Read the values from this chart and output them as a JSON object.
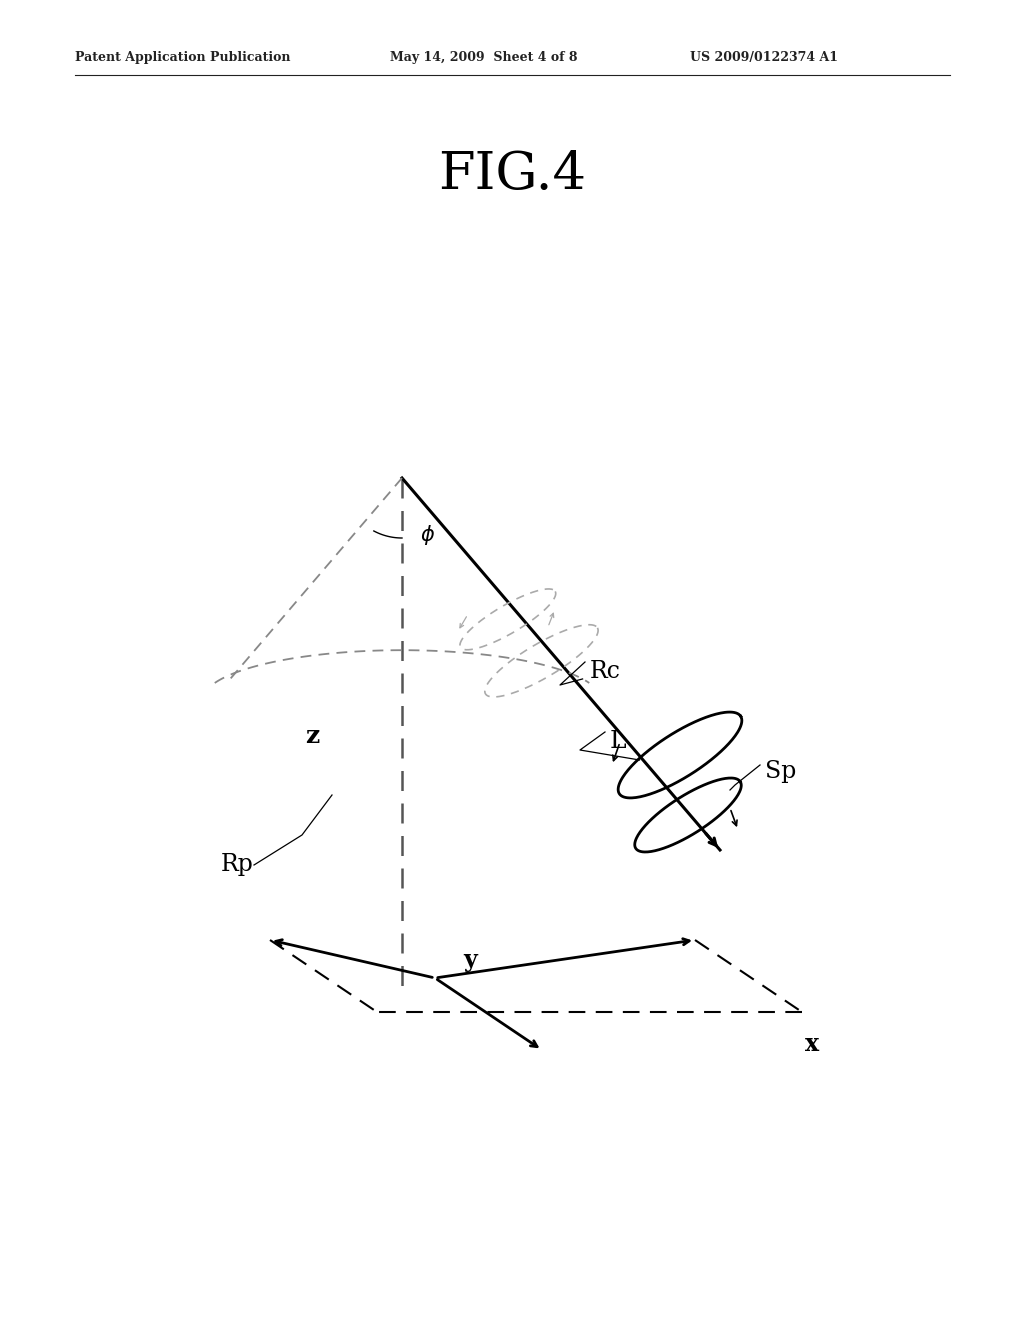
{
  "bg_color": "#ffffff",
  "title_text": "FIG.4",
  "header_left": "Patent Application Publication",
  "header_mid": "May 14, 2009  Sheet 4 of 8",
  "header_right": "US 2009/0122374 A1",
  "fig_width": 10.24,
  "fig_height": 13.2,
  "dpi": 100,
  "line_color": "#000000",
  "dashed_color": "#555555",
  "gray_color": "#888888",
  "light_gray": "#aaaaaa"
}
